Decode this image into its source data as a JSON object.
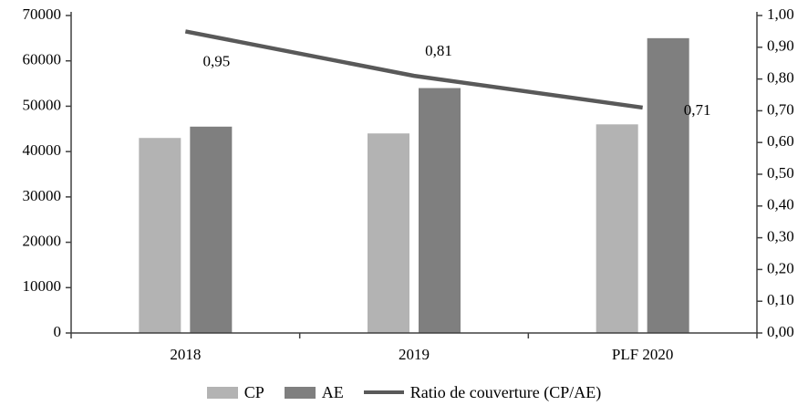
{
  "chart_data": {
    "type": "combo-bar-line",
    "title": "",
    "categories": [
      "2018",
      "2019",
      "PLF 2020"
    ],
    "series": [
      {
        "name": "CP",
        "type": "bar",
        "axis": "left",
        "color": "#b3b3b3",
        "values": [
          43000,
          44000,
          46000
        ]
      },
      {
        "name": "AE",
        "type": "bar",
        "axis": "left",
        "color": "#7f7f7f",
        "values": [
          45500,
          54000,
          65000
        ]
      },
      {
        "name": "Ratio de couverture (CP/AE)",
        "type": "line",
        "axis": "right",
        "color": "#595959",
        "values": [
          0.95,
          0.81,
          0.71
        ],
        "labels": [
          "0,95",
          "0,81",
          "0,71"
        ]
      }
    ],
    "left_axis": {
      "min": 0,
      "max": 70000,
      "step": 10000,
      "tick_labels": [
        "0",
        "10000",
        "20000",
        "30000",
        "40000",
        "50000",
        "60000",
        "70000"
      ]
    },
    "right_axis": {
      "min": 0,
      "max": 1,
      "step": 0.1,
      "tick_labels": [
        "0,00",
        "0,10",
        "0,20",
        "0,30",
        "0,40",
        "0,50",
        "0,60",
        "0,70",
        "0,80",
        "0,90",
        "1,00"
      ]
    },
    "axis_color": "#404040",
    "grid": false,
    "legend_position": "bottom",
    "legend": [
      {
        "label": "CP",
        "swatch": "bar",
        "color": "#b3b3b3"
      },
      {
        "label": "AE",
        "swatch": "bar",
        "color": "#7f7f7f"
      },
      {
        "label": "Ratio de couverture (CP/AE)",
        "swatch": "line",
        "color": "#595959"
      }
    ]
  }
}
